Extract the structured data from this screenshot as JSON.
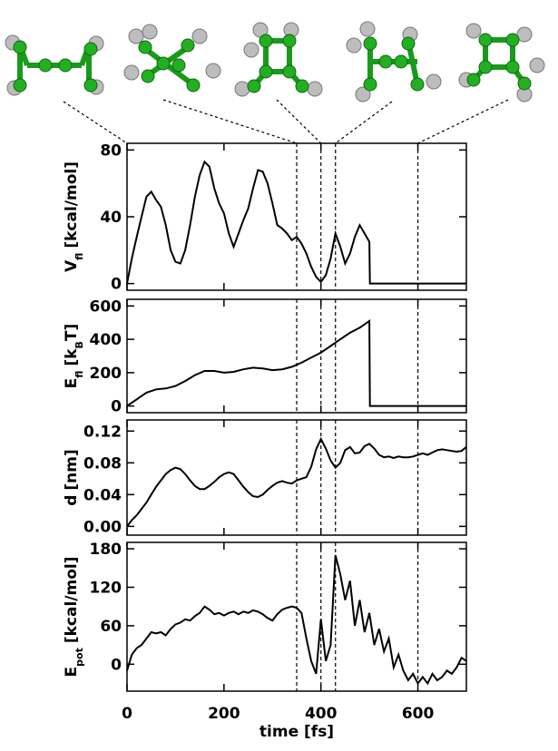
{
  "vlines": [
    350,
    400,
    430,
    600
  ],
  "chart_data": [
    {
      "type": "line",
      "ylabel": [
        {
          "text": "V"
        },
        {
          "text": "fl",
          "sub": true
        },
        {
          "text": "[kcal/mol]"
        }
      ],
      "xlim": [
        0,
        700
      ],
      "xticks": [
        0,
        200,
        400,
        600
      ],
      "ylim": [
        -4,
        84
      ],
      "yticks": [
        0,
        40,
        80
      ],
      "series": [
        {
          "color": "#000000",
          "x": [
            0,
            10,
            20,
            30,
            40,
            50,
            60,
            70,
            80,
            90,
            100,
            110,
            120,
            130,
            140,
            150,
            160,
            170,
            180,
            190,
            200,
            210,
            220,
            230,
            240,
            250,
            260,
            270,
            280,
            290,
            300,
            310,
            320,
            330,
            340,
            350,
            360,
            370,
            380,
            390,
            400,
            410,
            420,
            430,
            440,
            450,
            460,
            470,
            480,
            490,
            500,
            501,
            700
          ],
          "values": [
            0,
            15,
            28,
            40,
            52,
            55,
            50,
            46,
            35,
            20,
            13,
            12,
            20,
            35,
            52,
            65,
            73,
            70,
            57,
            48,
            42,
            30,
            22,
            30,
            38,
            45,
            57,
            68,
            67,
            60,
            48,
            35,
            33,
            30,
            26,
            28,
            24,
            18,
            10,
            4,
            1,
            5,
            15,
            30,
            22,
            12,
            18,
            28,
            35,
            30,
            25,
            0,
            0
          ]
        }
      ]
    },
    {
      "type": "line",
      "ylabel": [
        {
          "text": "E"
        },
        {
          "text": "fl",
          "sub": true
        },
        {
          "text": "[k"
        },
        {
          "text": "B",
          "sub": true
        },
        {
          "text": "T]"
        }
      ],
      "xlim": [
        0,
        700
      ],
      "xticks": [
        0,
        200,
        400,
        600
      ],
      "ylim": [
        -40,
        640
      ],
      "yticks": [
        0,
        200,
        400,
        600
      ],
      "series": [
        {
          "color": "#000000",
          "x": [
            0,
            20,
            40,
            60,
            80,
            100,
            120,
            140,
            160,
            180,
            200,
            220,
            240,
            260,
            280,
            300,
            320,
            340,
            360,
            380,
            400,
            420,
            440,
            460,
            480,
            500,
            501,
            700
          ],
          "values": [
            0,
            40,
            80,
            100,
            105,
            120,
            150,
            185,
            210,
            210,
            200,
            205,
            220,
            230,
            225,
            215,
            220,
            235,
            260,
            290,
            320,
            360,
            400,
            440,
            470,
            510,
            0,
            0
          ]
        }
      ]
    },
    {
      "type": "line",
      "ylabel": [
        {
          "text": "d"
        },
        {
          "text": "[nm]"
        }
      ],
      "xlim": [
        0,
        700
      ],
      "xticks": [
        0,
        200,
        400,
        600
      ],
      "ylim": [
        -0.011,
        0.134
      ],
      "yticks": [
        {
          "value": 0,
          "label": "0.00"
        },
        0.04,
        0.08,
        0.12
      ],
      "series": [
        {
          "color": "#000000",
          "x": [
            0,
            10,
            20,
            30,
            40,
            50,
            60,
            70,
            80,
            90,
            100,
            110,
            120,
            130,
            140,
            150,
            160,
            170,
            180,
            190,
            200,
            210,
            220,
            230,
            240,
            250,
            260,
            270,
            280,
            290,
            300,
            310,
            320,
            330,
            340,
            350,
            360,
            370,
            380,
            390,
            400,
            410,
            420,
            430,
            440,
            450,
            460,
            470,
            480,
            490,
            500,
            510,
            520,
            530,
            540,
            550,
            560,
            570,
            580,
            590,
            600,
            610,
            620,
            630,
            640,
            650,
            660,
            670,
            680,
            690,
            700
          ],
          "values": [
            0,
            0.008,
            0.014,
            0.022,
            0.03,
            0.04,
            0.05,
            0.058,
            0.066,
            0.071,
            0.074,
            0.072,
            0.066,
            0.058,
            0.051,
            0.047,
            0.047,
            0.051,
            0.056,
            0.062,
            0.066,
            0.068,
            0.066,
            0.058,
            0.05,
            0.043,
            0.038,
            0.037,
            0.04,
            0.046,
            0.051,
            0.055,
            0.057,
            0.055,
            0.054,
            0.058,
            0.06,
            0.062,
            0.075,
            0.097,
            0.11,
            0.098,
            0.083,
            0.074,
            0.08,
            0.096,
            0.1,
            0.092,
            0.093,
            0.101,
            0.104,
            0.098,
            0.09,
            0.087,
            0.088,
            0.086,
            0.088,
            0.087,
            0.087,
            0.088,
            0.09,
            0.092,
            0.09,
            0.093,
            0.096,
            0.097,
            0.096,
            0.095,
            0.094,
            0.095,
            0.1
          ]
        }
      ]
    },
    {
      "type": "line",
      "ylabel": [
        {
          "text": "E"
        },
        {
          "text": "pot",
          "sub": true
        },
        {
          "text": "[kcal/mol]"
        }
      ],
      "xlabel": "time [fs]",
      "xlim": [
        0,
        700
      ],
      "xticks": [
        0,
        200,
        400,
        600
      ],
      "ylim": [
        -42,
        190
      ],
      "yticks": [
        0,
        60,
        120,
        180
      ],
      "series": [
        {
          "color": "#000000",
          "x": [
            0,
            10,
            20,
            30,
            40,
            50,
            60,
            70,
            80,
            90,
            100,
            110,
            120,
            130,
            140,
            150,
            160,
            170,
            180,
            190,
            200,
            210,
            220,
            230,
            240,
            250,
            260,
            270,
            280,
            290,
            300,
            310,
            320,
            330,
            340,
            350,
            360,
            370,
            380,
            390,
            400,
            410,
            420,
            430,
            440,
            450,
            460,
            470,
            480,
            490,
            500,
            510,
            520,
            530,
            540,
            550,
            560,
            570,
            580,
            590,
            600,
            610,
            620,
            630,
            640,
            650,
            660,
            670,
            680,
            690,
            700
          ],
          "values": [
            -10,
            15,
            25,
            30,
            40,
            50,
            48,
            50,
            45,
            55,
            62,
            65,
            70,
            68,
            75,
            80,
            90,
            85,
            78,
            80,
            76,
            80,
            82,
            78,
            82,
            80,
            84,
            82,
            78,
            72,
            68,
            78,
            85,
            88,
            90,
            88,
            80,
            40,
            5,
            -15,
            70,
            5,
            30,
            170,
            140,
            100,
            130,
            60,
            100,
            50,
            80,
            30,
            55,
            20,
            40,
            -5,
            15,
            -10,
            -25,
            -15,
            -30,
            -20,
            -30,
            -15,
            -25,
            -20,
            -10,
            -15,
            -5,
            10,
            5
          ]
        }
      ]
    }
  ]
}
